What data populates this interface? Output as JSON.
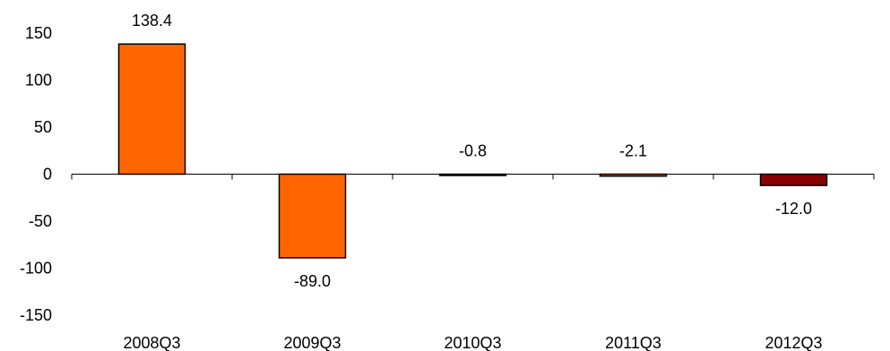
{
  "chart_data": {
    "type": "bar",
    "title": "",
    "xlabel": "",
    "ylabel": "",
    "categories": [
      "2008Q3",
      "2009Q3",
      "2010Q3",
      "2011Q3",
      "2012Q3"
    ],
    "values": [
      138.4,
      -89.0,
      -0.8,
      -2.1,
      -12.0
    ],
    "value_labels": [
      "138.4",
      "-89.0",
      "-0.8",
      "-2.1",
      "-12.0"
    ],
    "bar_colors": [
      "#ff6600",
      "#ff6600",
      "#ff6600",
      "#ff6600",
      "#8b0000"
    ],
    "ylim": [
      -150,
      150
    ],
    "yticks": [
      150,
      100,
      50,
      0,
      -50,
      -100,
      -150
    ],
    "grid": false,
    "legend": "none"
  }
}
